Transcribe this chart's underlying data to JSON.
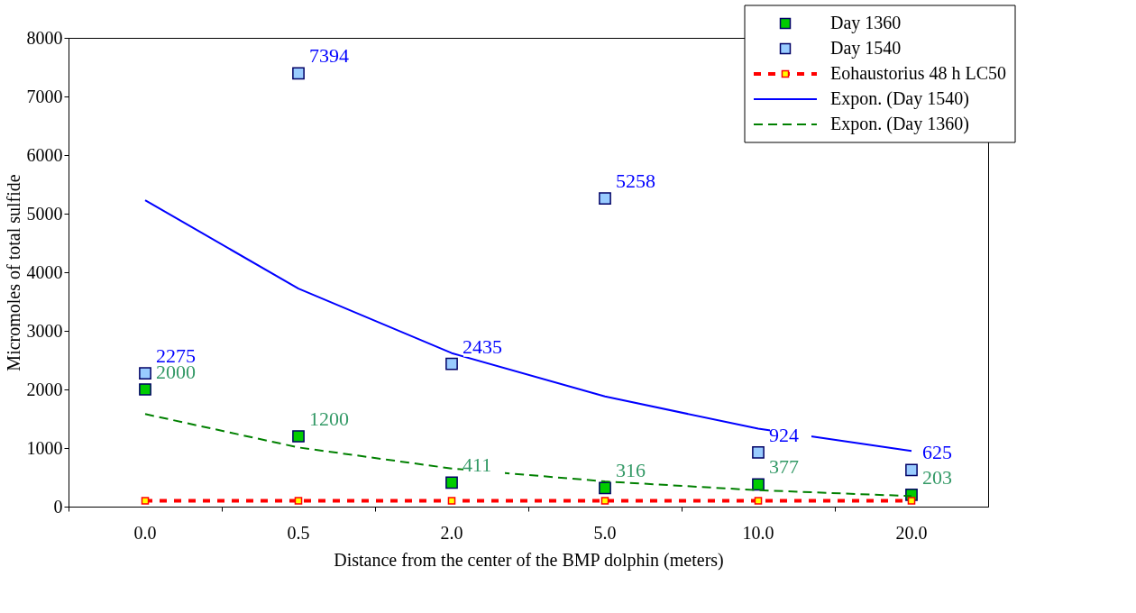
{
  "chart_data": {
    "type": "scatter",
    "xlabel": "Distance from the center of the BMP dolphin (meters)",
    "ylabel": "Micromoles of total sulfide",
    "categories": [
      "0.0",
      "0.5",
      "2.0",
      "5.0",
      "10.0",
      "20.0"
    ],
    "ylim": [
      0,
      8000
    ],
    "yticks": [
      0,
      1000,
      2000,
      3000,
      4000,
      5000,
      6000,
      7000,
      8000
    ],
    "grid": false,
    "legend": "top right",
    "series": [
      {
        "name": "Day 1360",
        "marker": "square",
        "color": "#00cc00",
        "values": [
          2000,
          1200,
          411,
          316,
          377,
          203
        ],
        "value_labels": [
          "2000",
          "1200",
          "411",
          "316",
          "377",
          "203"
        ]
      },
      {
        "name": "Day 1540",
        "marker": "square",
        "color": "#99ccff",
        "values": [
          2275,
          7394,
          2435,
          5258,
          924,
          625
        ],
        "value_labels": [
          "2275",
          "7394",
          "2435",
          "5258",
          "924",
          "625"
        ]
      },
      {
        "name": "Eohaustorius 48 h LC50",
        "type": "line",
        "marker": "square",
        "line_style": "dotted",
        "color": "#ff0000",
        "values": [
          100,
          100,
          100,
          100,
          100,
          100
        ]
      },
      {
        "name": "Expon. (Day 1540)",
        "type": "line",
        "marker": "none",
        "line_style": "solid",
        "color": "#0000ff",
        "values": [
          5230,
          3720,
          2620,
          1880,
          1330,
          950
        ]
      },
      {
        "name": "Expon. (Day 1360)",
        "type": "line",
        "marker": "none",
        "line_style": "dashed",
        "color": "#008000",
        "values": [
          1580,
          1010,
          650,
          430,
          280,
          180
        ]
      }
    ]
  }
}
